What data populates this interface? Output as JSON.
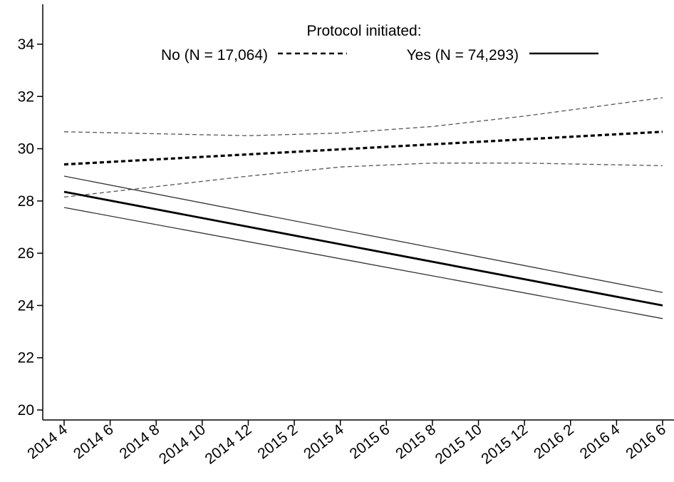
{
  "chart_data": {
    "type": "line",
    "title": "",
    "xlabel": "",
    "ylabel": "",
    "x_ticks": [
      "2014 4",
      "2014 6",
      "2014 8",
      "2014 10",
      "2014 12",
      "2015 2",
      "2015 4",
      "2015 6",
      "2015 8",
      "2015 10",
      "2015 12",
      "2016 2",
      "2016 4",
      "2016 6"
    ],
    "y_ticks": [
      20,
      22,
      24,
      26,
      28,
      30,
      32,
      34
    ],
    "ylim": [
      19.6,
      35.4
    ],
    "grid": false,
    "legend": {
      "title": "Protocol initiated:",
      "placement": "top-center",
      "entries": [
        {
          "label": "No (N = 17,064)",
          "style": "dashed"
        },
        {
          "label": "Yes (N = 74,293)",
          "style": "solid"
        }
      ]
    },
    "series": [
      {
        "name": "No (N = 17,064)",
        "style": "dashed",
        "x": [
          "2014 4",
          "2016 6"
        ],
        "values": [
          29.4,
          30.65
        ],
        "ci_lower": [
          {
            "x": "2014 4",
            "y": 28.15
          },
          {
            "x": "2014 12",
            "y": 28.95
          },
          {
            "x": "2015 4",
            "y": 29.3
          },
          {
            "x": "2015 8",
            "y": 29.45
          },
          {
            "x": "2015 12",
            "y": 29.45
          },
          {
            "x": "2016 6",
            "y": 29.35
          }
        ],
        "ci_upper": [
          {
            "x": "2014 4",
            "y": 30.65
          },
          {
            "x": "2014 12",
            "y": 30.5
          },
          {
            "x": "2015 4",
            "y": 30.6
          },
          {
            "x": "2015 8",
            "y": 30.85
          },
          {
            "x": "2015 12",
            "y": 31.25
          },
          {
            "x": "2016 6",
            "y": 31.95
          }
        ]
      },
      {
        "name": "Yes (N = 74,293)",
        "style": "solid",
        "x": [
          "2014 4",
          "2016 6"
        ],
        "values": [
          28.35,
          24.0
        ],
        "ci_lower": [
          {
            "x": "2014 4",
            "y": 27.75
          },
          {
            "x": "2016 6",
            "y": 23.5
          }
        ],
        "ci_upper": [
          {
            "x": "2014 4",
            "y": 28.95
          },
          {
            "x": "2016 6",
            "y": 24.5
          }
        ]
      }
    ],
    "colors": {
      "axis": "#000000",
      "line": "#000000",
      "ci": "#333333",
      "ci_dashed": "#555555"
    }
  }
}
